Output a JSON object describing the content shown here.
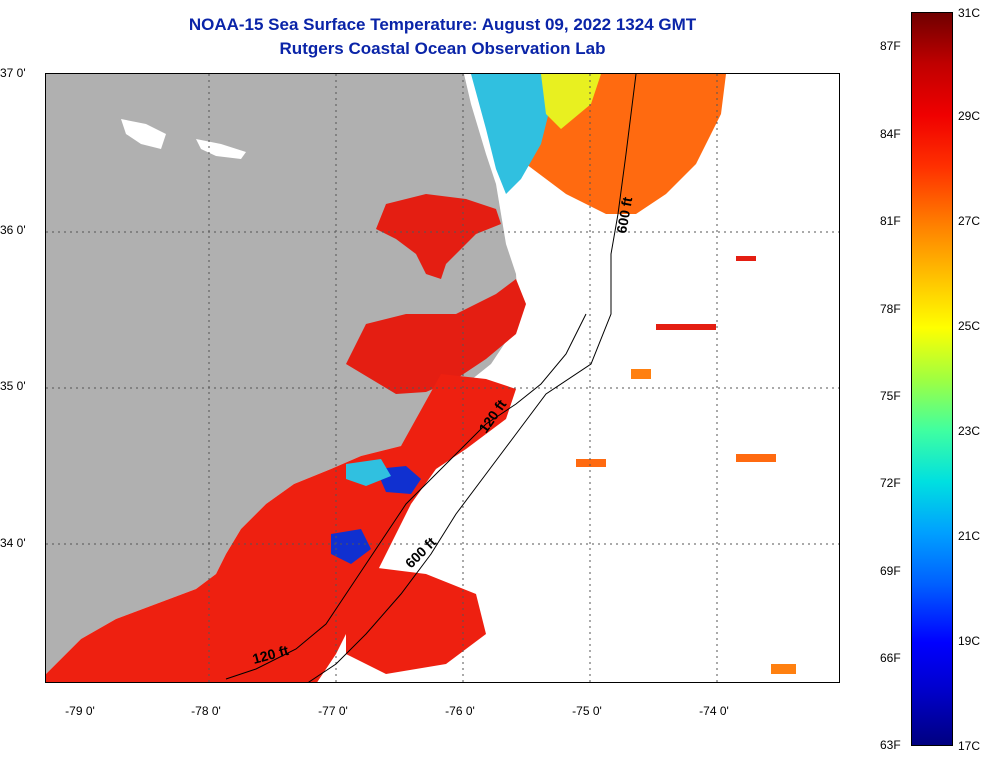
{
  "title": {
    "line1": "NOAA-15 Sea Surface Temperature:  August 09, 2022 1324 GMT",
    "line2": "Rutgers Coastal Ocean Observation Lab"
  },
  "map": {
    "lat_labels": [
      "37 0'",
      "36 0'",
      "35 0'",
      "34 0'"
    ],
    "lon_labels": [
      "-79 0'",
      "-78 0'",
      "-77 0'",
      "-76 0'",
      "-75 0'",
      "-74 0'"
    ],
    "contour_labels": [
      "600 ft",
      "120 ft",
      "600 ft",
      "120 ft"
    ],
    "colors": {
      "land": "#b0b0b0",
      "warm": "#ee2010",
      "orange": "#ff6a10",
      "cool": "#20b0e0",
      "cold": "#1030d0"
    }
  },
  "colorbar": {
    "f_labels": [
      "87F",
      "84F",
      "81F",
      "78F",
      "75F",
      "72F",
      "69F",
      "66F",
      "63F"
    ],
    "c_labels": [
      "31C",
      "29C",
      "27C",
      "25C",
      "23C",
      "21C",
      "19C",
      "17C"
    ]
  }
}
